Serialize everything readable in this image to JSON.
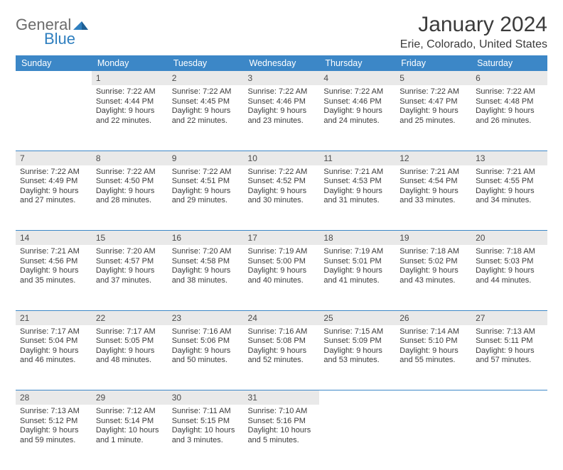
{
  "brand": {
    "word1": "General",
    "word2": "Blue"
  },
  "title": "January 2024",
  "location": "Erie, Colorado, United States",
  "colors": {
    "header_bg": "#3c87c7",
    "daynum_bg": "#e9e9e9",
    "rule": "#3c87c7",
    "logo_gray": "#6b6b6b",
    "logo_blue": "#2f7fbf"
  },
  "weekdays": [
    "Sunday",
    "Monday",
    "Tuesday",
    "Wednesday",
    "Thursday",
    "Friday",
    "Saturday"
  ],
  "weeks": [
    [
      null,
      {
        "n": "1",
        "sr": "7:22 AM",
        "ss": "4:44 PM",
        "d1": "9 hours",
        "d2": "and 22 minutes."
      },
      {
        "n": "2",
        "sr": "7:22 AM",
        "ss": "4:45 PM",
        "d1": "9 hours",
        "d2": "and 22 minutes."
      },
      {
        "n": "3",
        "sr": "7:22 AM",
        "ss": "4:46 PM",
        "d1": "9 hours",
        "d2": "and 23 minutes."
      },
      {
        "n": "4",
        "sr": "7:22 AM",
        "ss": "4:46 PM",
        "d1": "9 hours",
        "d2": "and 24 minutes."
      },
      {
        "n": "5",
        "sr": "7:22 AM",
        "ss": "4:47 PM",
        "d1": "9 hours",
        "d2": "and 25 minutes."
      },
      {
        "n": "6",
        "sr": "7:22 AM",
        "ss": "4:48 PM",
        "d1": "9 hours",
        "d2": "and 26 minutes."
      }
    ],
    [
      {
        "n": "7",
        "sr": "7:22 AM",
        "ss": "4:49 PM",
        "d1": "9 hours",
        "d2": "and 27 minutes."
      },
      {
        "n": "8",
        "sr": "7:22 AM",
        "ss": "4:50 PM",
        "d1": "9 hours",
        "d2": "and 28 minutes."
      },
      {
        "n": "9",
        "sr": "7:22 AM",
        "ss": "4:51 PM",
        "d1": "9 hours",
        "d2": "and 29 minutes."
      },
      {
        "n": "10",
        "sr": "7:22 AM",
        "ss": "4:52 PM",
        "d1": "9 hours",
        "d2": "and 30 minutes."
      },
      {
        "n": "11",
        "sr": "7:21 AM",
        "ss": "4:53 PM",
        "d1": "9 hours",
        "d2": "and 31 minutes."
      },
      {
        "n": "12",
        "sr": "7:21 AM",
        "ss": "4:54 PM",
        "d1": "9 hours",
        "d2": "and 33 minutes."
      },
      {
        "n": "13",
        "sr": "7:21 AM",
        "ss": "4:55 PM",
        "d1": "9 hours",
        "d2": "and 34 minutes."
      }
    ],
    [
      {
        "n": "14",
        "sr": "7:21 AM",
        "ss": "4:56 PM",
        "d1": "9 hours",
        "d2": "and 35 minutes."
      },
      {
        "n": "15",
        "sr": "7:20 AM",
        "ss": "4:57 PM",
        "d1": "9 hours",
        "d2": "and 37 minutes."
      },
      {
        "n": "16",
        "sr": "7:20 AM",
        "ss": "4:58 PM",
        "d1": "9 hours",
        "d2": "and 38 minutes."
      },
      {
        "n": "17",
        "sr": "7:19 AM",
        "ss": "5:00 PM",
        "d1": "9 hours",
        "d2": "and 40 minutes."
      },
      {
        "n": "18",
        "sr": "7:19 AM",
        "ss": "5:01 PM",
        "d1": "9 hours",
        "d2": "and 41 minutes."
      },
      {
        "n": "19",
        "sr": "7:18 AM",
        "ss": "5:02 PM",
        "d1": "9 hours",
        "d2": "and 43 minutes."
      },
      {
        "n": "20",
        "sr": "7:18 AM",
        "ss": "5:03 PM",
        "d1": "9 hours",
        "d2": "and 44 minutes."
      }
    ],
    [
      {
        "n": "21",
        "sr": "7:17 AM",
        "ss": "5:04 PM",
        "d1": "9 hours",
        "d2": "and 46 minutes."
      },
      {
        "n": "22",
        "sr": "7:17 AM",
        "ss": "5:05 PM",
        "d1": "9 hours",
        "d2": "and 48 minutes."
      },
      {
        "n": "23",
        "sr": "7:16 AM",
        "ss": "5:06 PM",
        "d1": "9 hours",
        "d2": "and 50 minutes."
      },
      {
        "n": "24",
        "sr": "7:16 AM",
        "ss": "5:08 PM",
        "d1": "9 hours",
        "d2": "and 52 minutes."
      },
      {
        "n": "25",
        "sr": "7:15 AM",
        "ss": "5:09 PM",
        "d1": "9 hours",
        "d2": "and 53 minutes."
      },
      {
        "n": "26",
        "sr": "7:14 AM",
        "ss": "5:10 PM",
        "d1": "9 hours",
        "d2": "and 55 minutes."
      },
      {
        "n": "27",
        "sr": "7:13 AM",
        "ss": "5:11 PM",
        "d1": "9 hours",
        "d2": "and 57 minutes."
      }
    ],
    [
      {
        "n": "28",
        "sr": "7:13 AM",
        "ss": "5:12 PM",
        "d1": "9 hours",
        "d2": "and 59 minutes."
      },
      {
        "n": "29",
        "sr": "7:12 AM",
        "ss": "5:14 PM",
        "d1": "10 hours",
        "d2": "and 1 minute."
      },
      {
        "n": "30",
        "sr": "7:11 AM",
        "ss": "5:15 PM",
        "d1": "10 hours",
        "d2": "and 3 minutes."
      },
      {
        "n": "31",
        "sr": "7:10 AM",
        "ss": "5:16 PM",
        "d1": "10 hours",
        "d2": "and 5 minutes."
      },
      null,
      null,
      null
    ]
  ],
  "labels": {
    "sunrise": "Sunrise:",
    "sunset": "Sunset:",
    "daylight": "Daylight:"
  }
}
